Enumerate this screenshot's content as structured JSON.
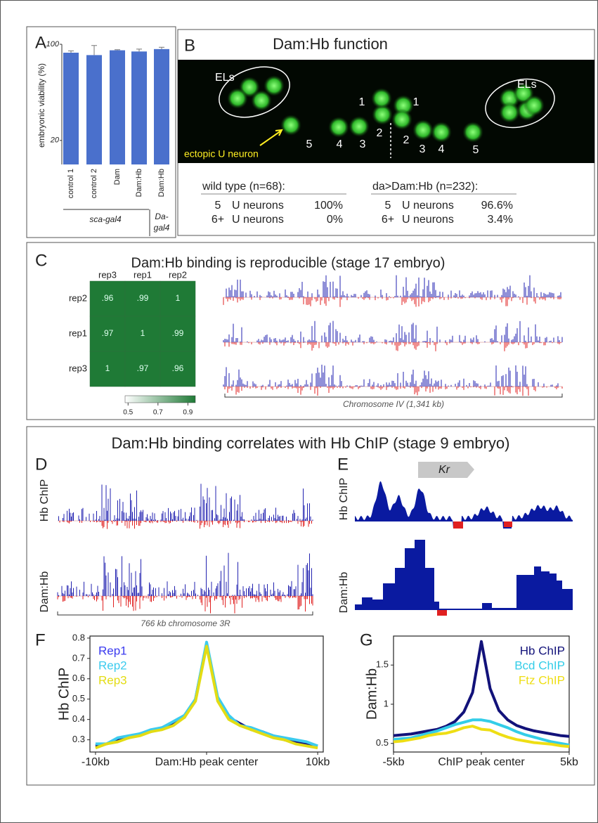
{
  "panel_labels": [
    "A",
    "B",
    "C",
    "D",
    "E",
    "F",
    "G"
  ],
  "panel_b": {
    "title": "Dam:Hb function",
    "els": [
      "ELs",
      "ELs"
    ],
    "cell_numbers": [
      "5",
      "4",
      "3",
      "2",
      "1",
      "1",
      "2",
      "3",
      "4",
      "5"
    ],
    "ectopic": "ectopic U neuron",
    "tables": [
      {
        "header": "wild type (n=68):",
        "rows": [
          [
            "5",
            "U neurons",
            "100%"
          ],
          [
            "6+",
            "U neurons",
            "0%"
          ]
        ]
      },
      {
        "header": "da>Dam:Hb (n=232):",
        "rows": [
          [
            "5",
            "U neurons",
            "96.6%"
          ],
          [
            "6+",
            "U neurons",
            "3.4%"
          ]
        ]
      }
    ]
  },
  "panel_c": {
    "title": "Dam:Hb binding is reproducible (stage 17 embryo)",
    "track_axis_label": "Chromosome IV (1,341 kb)"
  },
  "panel_dg": {
    "title": "Dam:Hb binding correlates with Hb ChIP (stage 9 embryo)"
  },
  "panel_d": {
    "track_labels": [
      "Hb ChIP",
      "Dam:Hb"
    ],
    "axis_label": "766 kb chromosome 3R"
  },
  "panel_e": {
    "gene": "Kr",
    "track_labels": [
      "Hb ChIP",
      "Dam:Hb"
    ]
  },
  "chart_data": [
    {
      "type": "bar",
      "y_label": "embryonic viability (%)",
      "categories": [
        "control 1",
        "control 2",
        "Dam",
        "Dam:Hb",
        "Dam:Hb"
      ],
      "values": [
        93,
        91,
        95,
        94,
        96
      ],
      "errors": [
        1.5,
        8,
        0.5,
        2,
        1.5
      ],
      "color": "#4a70cc",
      "ylim": [
        0,
        100
      ],
      "yticks": [
        20,
        100
      ],
      "group_labels": [
        [
          "sca-gal4"
        ],
        [
          "Da-",
          "gal4"
        ]
      ]
    },
    {
      "type": "heatmap",
      "rows": [
        "rep2",
        "rep1",
        "rep3"
      ],
      "columns": [
        "rep3",
        "rep1",
        "rep2"
      ],
      "values": [
        [
          0.96,
          0.99,
          1
        ],
        [
          0.97,
          1,
          0.99
        ],
        [
          1,
          0.97,
          0.96
        ]
      ],
      "value_labels": [
        [
          ".96",
          ".99",
          "1"
        ],
        [
          ".97",
          "1",
          ".99"
        ],
        [
          "1",
          ".97",
          ".96"
        ]
      ],
      "clim": [
        0.48,
        0.95
      ],
      "cticks": [
        0.5,
        0.7,
        0.9
      ],
      "color": "#1f7a36"
    },
    {
      "type": "line",
      "y_label": "Hb ChIP",
      "x": [
        -10,
        -9,
        -8,
        -7,
        -6,
        -5,
        -4,
        -3,
        -2,
        -1,
        0,
        1,
        2,
        3,
        4,
        5,
        6,
        7,
        8,
        9,
        10
      ],
      "series": [
        {
          "name": "Rep1",
          "color": "#3a3aef",
          "line_color": "#14147a",
          "values": [
            0.27,
            0.28,
            0.3,
            0.31,
            0.33,
            0.34,
            0.36,
            0.38,
            0.41,
            0.5,
            0.77,
            0.5,
            0.41,
            0.38,
            0.35,
            0.34,
            0.32,
            0.3,
            0.29,
            0.28,
            0.27
          ]
        },
        {
          "name": "Rep2",
          "color": "#3ccbee",
          "values": [
            0.28,
            0.28,
            0.31,
            0.32,
            0.33,
            0.35,
            0.36,
            0.39,
            0.42,
            0.5,
            0.78,
            0.51,
            0.42,
            0.37,
            0.36,
            0.34,
            0.32,
            0.31,
            0.3,
            0.29,
            0.27
          ]
        },
        {
          "name": "Rep3",
          "color": "#e3dc14",
          "values": [
            0.26,
            0.28,
            0.29,
            0.31,
            0.32,
            0.34,
            0.35,
            0.37,
            0.41,
            0.49,
            0.76,
            0.49,
            0.4,
            0.37,
            0.35,
            0.33,
            0.31,
            0.3,
            0.28,
            0.27,
            0.26
          ]
        }
      ],
      "xlim": [
        -10.5,
        10.5
      ],
      "ylim": [
        0.24,
        0.81
      ],
      "xticks": [
        {
          "value": -10,
          "label": "-10kb"
        },
        {
          "value": 0,
          "label": "Dam:Hb peak center"
        },
        {
          "value": 10,
          "label": "10kb"
        }
      ],
      "yticks": [
        0.3,
        0.4,
        0.5,
        0.6,
        0.7,
        0.8
      ],
      "legend": "top-left"
    },
    {
      "type": "line",
      "y_label": "Dam:Hb",
      "x": [
        -5,
        -4.5,
        -4,
        -3.5,
        -3,
        -2.5,
        -2,
        -1.5,
        -1,
        -0.5,
        0,
        0.5,
        1,
        1.5,
        2,
        2.5,
        3,
        3.5,
        4,
        4.5,
        5
      ],
      "series": [
        {
          "name": "Hb ChIP",
          "color": "#12127a",
          "values": [
            0.6,
            0.61,
            0.62,
            0.64,
            0.66,
            0.68,
            0.72,
            0.78,
            0.9,
            1.15,
            1.8,
            1.2,
            0.92,
            0.8,
            0.73,
            0.69,
            0.66,
            0.64,
            0.62,
            0.6,
            0.59
          ]
        },
        {
          "name": "Bcd ChIP",
          "color": "#33cde8",
          "values": [
            0.55,
            0.56,
            0.57,
            0.6,
            0.63,
            0.66,
            0.7,
            0.74,
            0.77,
            0.8,
            0.8,
            0.78,
            0.74,
            0.7,
            0.65,
            0.61,
            0.58,
            0.55,
            0.52,
            0.5,
            0.48
          ]
        },
        {
          "name": "Ftz ChIP",
          "color": "#eede14",
          "values": [
            0.52,
            0.53,
            0.55,
            0.57,
            0.6,
            0.62,
            0.63,
            0.66,
            0.7,
            0.72,
            0.68,
            0.67,
            0.62,
            0.58,
            0.55,
            0.53,
            0.51,
            0.5,
            0.49,
            0.47,
            0.46
          ]
        }
      ],
      "xlim": [
        -5,
        5
      ],
      "ylim": [
        0.39,
        1.87
      ],
      "xticks": [
        {
          "value": -5,
          "label": "-5kb"
        },
        {
          "value": 0,
          "label": "ChIP peak center"
        },
        {
          "value": 5,
          "label": "5kb"
        }
      ],
      "yticks": [
        0.5,
        1,
        1.5
      ],
      "legend": "top-right"
    }
  ]
}
